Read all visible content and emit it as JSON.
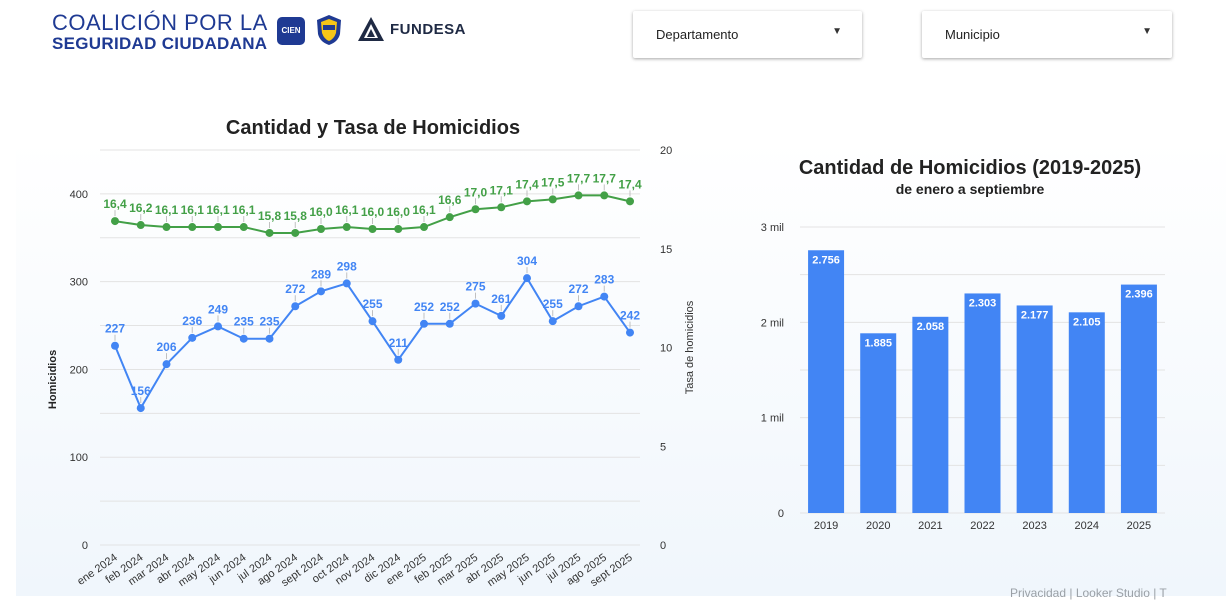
{
  "header": {
    "logo_line1": "COALICIÓN POR LA",
    "logo_line2": "SEGURIDAD CIUDADANA",
    "badge_cien": "CIEN",
    "fundesa": "FUNDESA"
  },
  "filters": {
    "departamento": "Departamento",
    "municipio": "Municipio"
  },
  "footer": {
    "text": "Privacidad | Looker Studio | T"
  },
  "colors": {
    "green": "#43a047",
    "blue": "#4285f4",
    "bar": "#4285f4"
  },
  "chart_data": [
    {
      "type": "line",
      "title": "Cantidad y Tasa de Homicidios",
      "ylabel": "Homicidios",
      "y2label": "Tasa de homicidios",
      "ylim": [
        0,
        450
      ],
      "y2lim": [
        0,
        20
      ],
      "yticks": [
        0,
        100,
        200,
        300,
        400
      ],
      "y2ticks": [
        0,
        5,
        10,
        15,
        20
      ],
      "categories": [
        "ene 2024",
        "feb 2024",
        "mar 2024",
        "abr 2024",
        "may 2024",
        "jun 2024",
        "jul 2024",
        "ago 2024",
        "sept 2024",
        "oct 2024",
        "nov 2024",
        "dic 2024",
        "ene 2025",
        "feb 2025",
        "mar 2025",
        "abr 2025",
        "may 2025",
        "jun 2025",
        "jul 2025",
        "ago 2025",
        "sept 2025"
      ],
      "series": [
        {
          "name": "Homicidios",
          "axis": "left",
          "values": [
            227,
            156,
            206,
            236,
            249,
            235,
            235,
            272,
            289,
            298,
            255,
            211,
            252,
            252,
            275,
            261,
            304,
            255,
            272,
            283,
            242
          ],
          "labels": [
            "227",
            "156",
            "206",
            "236",
            "249",
            "235",
            "235",
            "272",
            "289",
            "298",
            "255",
            "211",
            "252",
            "252",
            "275",
            "261",
            "304",
            "255",
            "272",
            "283",
            "242"
          ]
        },
        {
          "name": "Tasa de homicidios",
          "axis": "right",
          "values": [
            16.4,
            16.2,
            16.1,
            16.1,
            16.1,
            16.1,
            15.8,
            15.8,
            16.0,
            16.1,
            16.0,
            16.0,
            16.1,
            16.6,
            17.0,
            17.1,
            17.4,
            17.5,
            17.7,
            17.7,
            17.4
          ],
          "labels": [
            "16,4",
            "16,2",
            "16,1",
            "16,1",
            "16,1",
            "16,1",
            "15,8",
            "15,8",
            "16,0",
            "16,1",
            "16,0",
            "16,0",
            "16,1",
            "16,6",
            "17,0",
            "17,1",
            "17,4",
            "17,5",
            "17,7",
            "17,7",
            "17,4"
          ]
        }
      ]
    },
    {
      "type": "bar",
      "title": "Cantidad de Homicidios (2019-2025)",
      "subtitle": "de enero a septiembre",
      "categories": [
        "2019",
        "2020",
        "2021",
        "2022",
        "2023",
        "2024",
        "2025"
      ],
      "values": [
        2756,
        1885,
        2058,
        2303,
        2177,
        2105,
        2396
      ],
      "labels": [
        "2.756",
        "1.885",
        "2.058",
        "2.303",
        "2.177",
        "2.105",
        "2.396"
      ],
      "ylim": [
        0,
        3000
      ],
      "yticks": [
        0,
        1000,
        2000,
        3000
      ],
      "ytick_labels": [
        "0",
        "1 mil",
        "2 mil",
        "3 mil"
      ]
    }
  ]
}
